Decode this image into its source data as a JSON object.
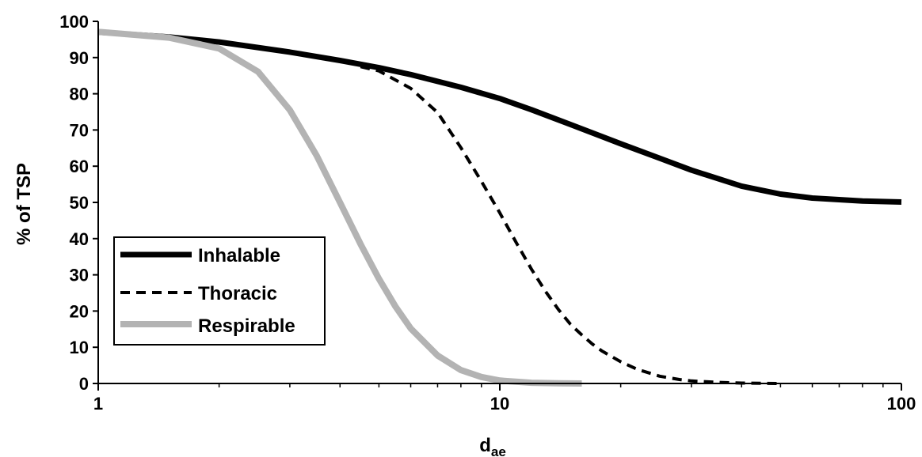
{
  "chart_data": {
    "type": "line",
    "title": "",
    "xlabel_main": "d",
    "xlabel_sub": "ae",
    "ylabel": "% of TSP",
    "xscale": "log",
    "xlim": [
      1,
      100
    ],
    "ylim": [
      0,
      100
    ],
    "x_ticks": [
      1,
      10,
      100
    ],
    "x_tick_labels": [
      "1",
      "10",
      "100"
    ],
    "y_ticks": [
      0,
      10,
      20,
      30,
      40,
      50,
      60,
      70,
      80,
      90,
      100
    ],
    "y_tick_labels": [
      "0",
      "10",
      "20",
      "30",
      "40",
      "50",
      "60",
      "70",
      "80",
      "90",
      "100"
    ],
    "grid": false,
    "legend_position": "bottom-left",
    "series": [
      {
        "name": "Inhalable",
        "color": "#000000",
        "style": "solid",
        "x": [
          1,
          1.5,
          2,
          3,
          4,
          5,
          6,
          8,
          10,
          12,
          15,
          20,
          25,
          30,
          40,
          50,
          60,
          80,
          100
        ],
        "y": [
          97,
          95.7,
          94.3,
          91.5,
          89.2,
          87.2,
          85.3,
          81.8,
          78.7,
          75.6,
          71.5,
          66.2,
          62.2,
          58.9,
          54.5,
          52.3,
          51.2,
          50.4,
          50.1
        ]
      },
      {
        "name": "Thoracic",
        "color": "#000000",
        "style": "dashed",
        "x": [
          4.5,
          5,
          6,
          7,
          8,
          9,
          10,
          11,
          12,
          13,
          14,
          15,
          16,
          17,
          18,
          20,
          22,
          25,
          28,
          30,
          35,
          40,
          45,
          50
        ],
        "y": [
          87.5,
          86.3,
          81.5,
          74.8,
          65.1,
          55.8,
          47.1,
          38.8,
          31.5,
          25.4,
          20.4,
          16.3,
          13.4,
          10.9,
          8.9,
          6,
          3.9,
          2,
          1.1,
          0.7,
          0.3,
          0.1,
          0.05,
          0
        ]
      },
      {
        "name": "Respirable",
        "color": "#b3b3b3",
        "style": "solid",
        "x": [
          1,
          1.5,
          2,
          2.5,
          3,
          3.5,
          4,
          4.5,
          5,
          5.5,
          6,
          7,
          8,
          9,
          10,
          12,
          14,
          16
        ],
        "y": [
          97.1,
          95.5,
          92.5,
          86.1,
          75.5,
          62.9,
          50,
          38.5,
          28.9,
          21.2,
          15.2,
          7.7,
          3.7,
          1.8,
          0.8,
          0.2,
          0.05,
          0
        ]
      }
    ]
  }
}
